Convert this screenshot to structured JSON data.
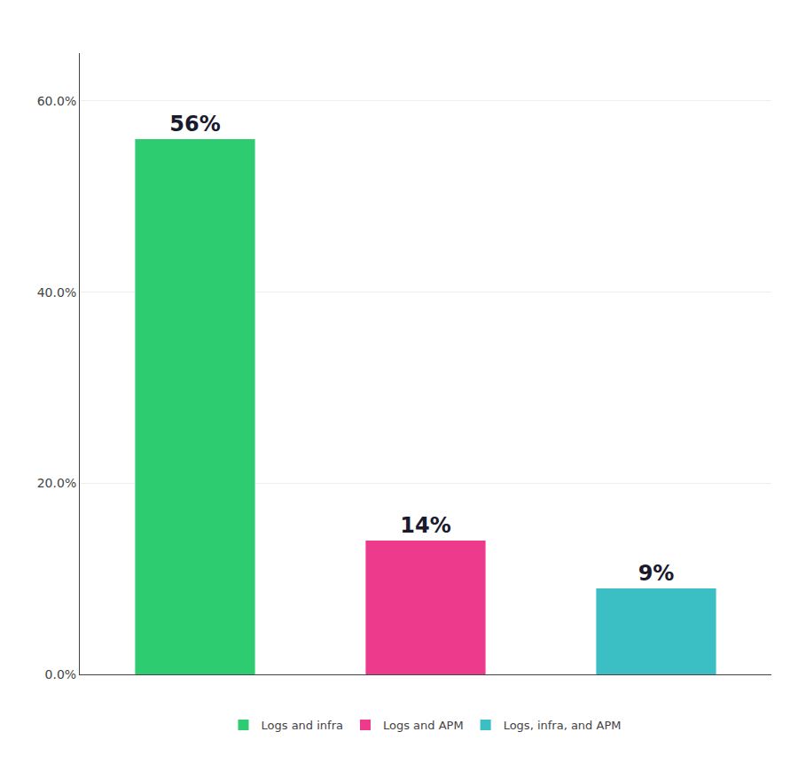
{
  "chart_data": {
    "type": "bar",
    "categories": [
      "Logs and infra",
      "Logs and APM",
      "Logs, infra, and APM"
    ],
    "values": [
      56,
      14,
      9
    ],
    "value_labels": [
      "56%",
      "14%",
      "9%"
    ],
    "data_labels": true,
    "colors": [
      "#2ECC71",
      "#EE3A8C",
      "#3BBFC4"
    ],
    "ylim": [
      0,
      65
    ],
    "yticks": [
      {
        "value": 0,
        "label": "0.0%"
      },
      {
        "value": 20,
        "label": "20.0%"
      },
      {
        "value": 40,
        "label": "40.0%"
      },
      {
        "value": 60,
        "label": "60.0%"
      }
    ],
    "grid": true,
    "legend": "bottom",
    "tick_labels": "y"
  }
}
